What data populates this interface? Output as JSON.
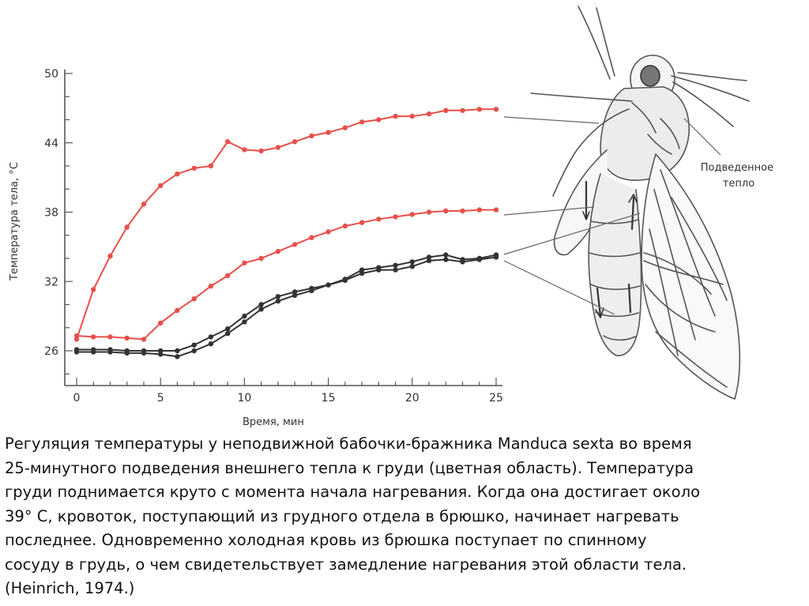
{
  "chart_data": {
    "type": "line",
    "xlabel": "Время, мин",
    "ylabel": "Температура тела, °С",
    "xlim": [
      0,
      25
    ],
    "ylim": [
      22,
      50
    ],
    "x_ticks": [
      "0",
      "5",
      "10",
      "15",
      "20",
      "25"
    ],
    "y_ticks": [
      "26",
      "32",
      "38",
      "44",
      "50"
    ],
    "grid": false,
    "annotation": "Подведенное тепло",
    "colors": {
      "heated": "#e8504a",
      "dark": "#333333",
      "axis": "#555555",
      "moth": "#555555"
    },
    "series": [
      {
        "color": "#e8504a",
        "x": [
          0,
          1,
          2,
          3,
          4,
          5,
          6,
          7,
          8,
          9,
          10,
          11,
          12,
          13,
          14,
          15,
          16,
          17,
          18,
          19,
          20,
          21,
          22,
          23,
          24,
          25
        ],
        "values": [
          27.0,
          31.3,
          34.2,
          36.7,
          38.7,
          40.3,
          41.3,
          41.8,
          42.0,
          44.1,
          43.4,
          43.3,
          43.6,
          44.1,
          44.6,
          44.9,
          45.3,
          45.8,
          46.0,
          46.3,
          46.3,
          46.5,
          46.8,
          46.8,
          46.9,
          46.9
        ]
      },
      {
        "color": "#e8504a",
        "x": [
          0,
          1,
          2,
          3,
          4,
          5,
          6,
          7,
          8,
          9,
          10,
          11,
          12,
          13,
          14,
          15,
          16,
          17,
          18,
          19,
          20,
          21,
          22,
          23,
          24,
          25
        ],
        "values": [
          27.3,
          27.2,
          27.2,
          27.1,
          27.0,
          28.4,
          29.5,
          30.5,
          31.6,
          32.5,
          33.6,
          34.0,
          34.6,
          35.2,
          35.8,
          36.3,
          36.8,
          37.1,
          37.4,
          37.6,
          37.8,
          38.0,
          38.1,
          38.1,
          38.2,
          38.2
        ]
      },
      {
        "color": "#333333",
        "x": [
          0,
          1,
          2,
          3,
          4,
          5,
          6,
          7,
          8,
          9,
          10,
          11,
          12,
          13,
          14,
          15,
          16,
          17,
          18,
          19,
          20,
          21,
          22,
          23,
          24,
          25
        ],
        "values": [
          26.1,
          26.1,
          26.1,
          26.0,
          26.0,
          26.0,
          26.0,
          26.5,
          27.2,
          27.9,
          29.0,
          30.0,
          30.7,
          31.1,
          31.4,
          31.7,
          32.2,
          33.0,
          33.2,
          33.4,
          33.7,
          34.1,
          34.3,
          33.9,
          34.0,
          34.3
        ]
      },
      {
        "color": "#333333",
        "x": [
          0,
          1,
          2,
          3,
          4,
          5,
          6,
          7,
          8,
          9,
          10,
          11,
          12,
          13,
          14,
          15,
          16,
          17,
          18,
          19,
          20,
          21,
          22,
          23,
          24,
          25
        ],
        "values": [
          25.9,
          25.9,
          25.9,
          25.8,
          25.8,
          25.7,
          25.5,
          26.0,
          26.6,
          27.5,
          28.5,
          29.6,
          30.3,
          30.8,
          31.2,
          31.7,
          32.1,
          32.7,
          33.0,
          33.0,
          33.3,
          33.8,
          33.9,
          33.7,
          33.9,
          34.1
        ]
      }
    ]
  },
  "caption": {
    "lines": [
      "Регуляция температуры у неподвижной бабочки-бражника Manduca sexta во время",
      "25-минутного подведения внешнего тепла к груди (цветная область). Температура",
      "груди поднимается круто с момента начала нагревания. Когда она достигает около",
      "39° С, кровоток, поступающий из грудного отдела в брюшко, начинает нагревать",
      "последнее. Одновременно холодная кровь из брюшка поступает по спинному",
      "сосуду в грудь, о чем свидетельствует замедление нагревания этой области тела.",
      "(Heinrich, 1974.)"
    ]
  }
}
